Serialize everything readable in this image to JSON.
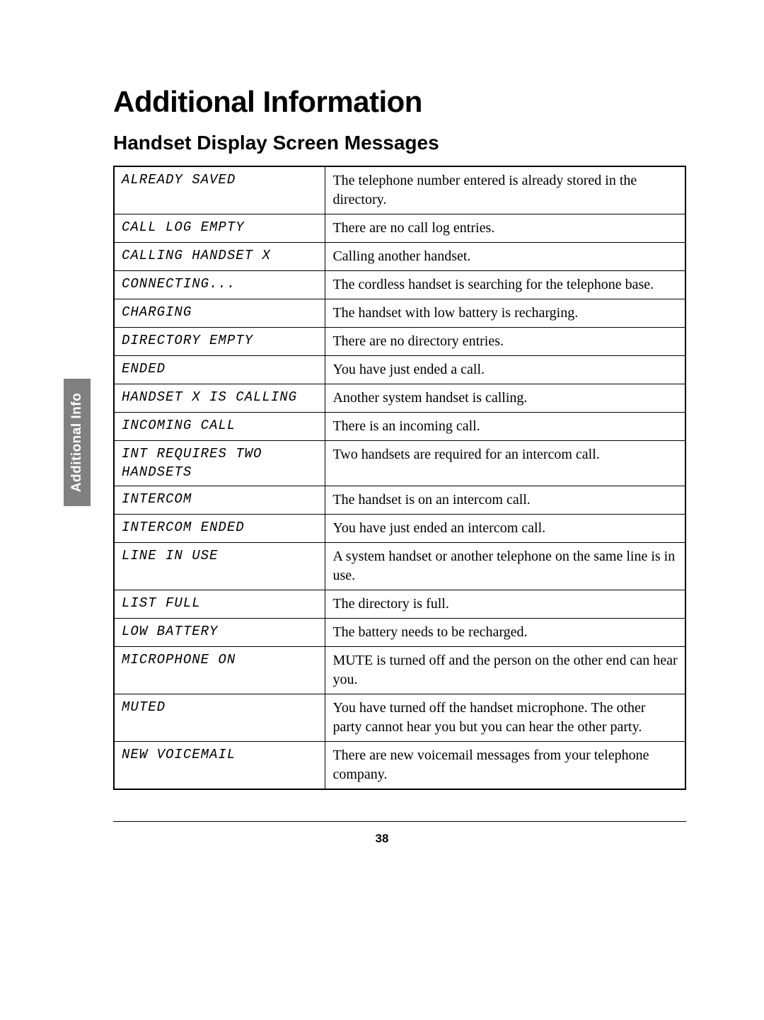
{
  "sideTab": "Additional Info",
  "heading1": "Additional Information",
  "heading2": "Handset Display Screen Messages",
  "rows": [
    {
      "message": "ALREADY SAVED",
      "desc": "The telephone number entered is already stored in the directory."
    },
    {
      "message": "CALL LOG EMPTY",
      "desc": "There are no call log entries."
    },
    {
      "message": "CALLING HANDSET X",
      "desc": "Calling another handset."
    },
    {
      "message": "CONNECTING...",
      "desc": "The cordless handset is searching for the telephone base."
    },
    {
      "message": "CHARGING",
      "desc": "The handset with low battery is recharging."
    },
    {
      "message": "DIRECTORY EMPTY",
      "desc": "There are no directory entries."
    },
    {
      "message": "ENDED",
      "desc": "You have just ended a call."
    },
    {
      "message": "HANDSET X IS CALLING",
      "desc": "Another system handset is calling."
    },
    {
      "message": "INCOMING CALL",
      "desc": "There is an incoming call."
    },
    {
      "message": "INT REQUIRES TWO HANDSETS",
      "desc": "Two handsets are required for an intercom call."
    },
    {
      "message": "INTERCOM",
      "desc": "The handset is on an intercom call."
    },
    {
      "message": "INTERCOM ENDED",
      "desc": "You have just ended an intercom call."
    },
    {
      "message": "LINE IN USE",
      "desc": "A system handset or another telephone on the same line is in use."
    },
    {
      "message": "LIST FULL",
      "desc": "The directory is full."
    },
    {
      "message": "LOW BATTERY",
      "desc": "The battery needs to be recharged."
    },
    {
      "message": "MICROPHONE ON",
      "desc": "MUTE is turned off and the person on the other end can hear you."
    },
    {
      "message": "MUTED",
      "desc": "You have turned off the handset microphone. The other party cannot hear you but you can hear the other party."
    },
    {
      "message": "NEW VOICEMAIL",
      "desc": "There are new voicemail messages from your telephone company."
    }
  ],
  "pageNumber": "38",
  "colors": {
    "tabBg": "#808080",
    "tabText": "#ffffff",
    "text": "#000000",
    "border": "#000000",
    "bg": "#ffffff"
  }
}
